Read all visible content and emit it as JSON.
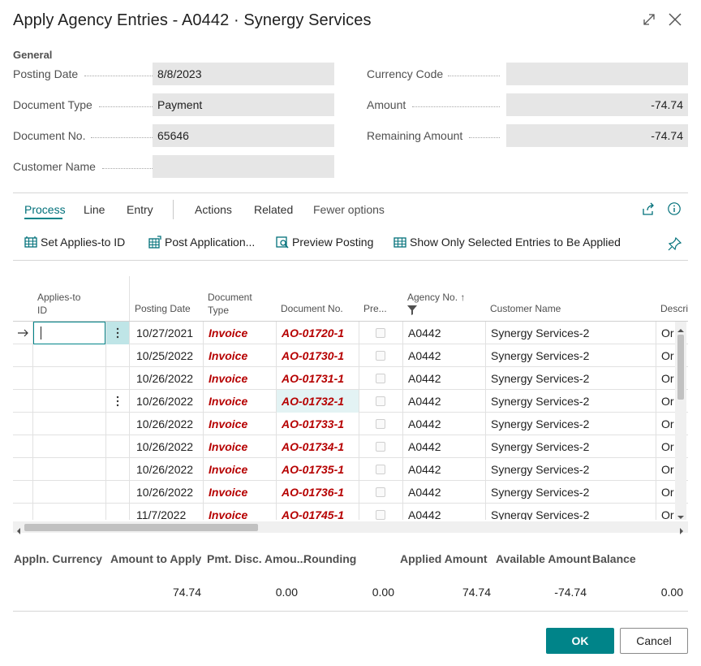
{
  "window": {
    "title": "Apply Agency Entries - A0442 · Synergy Services",
    "general_label": "General"
  },
  "general": {
    "posting_date_label": "Posting Date",
    "posting_date_value": "8/8/2023",
    "document_type_label": "Document Type",
    "document_type_value": "Payment",
    "document_no_label": "Document No.",
    "document_no_value": "65646",
    "customer_name_label": "Customer Name",
    "customer_name_value": "",
    "currency_code_label": "Currency Code",
    "currency_code_value": "",
    "amount_label": "Amount",
    "amount_value": "-74.74",
    "remaining_amount_label": "Remaining Amount",
    "remaining_amount_value": "-74.74"
  },
  "menu": {
    "process": "Process",
    "line": "Line",
    "entry": "Entry",
    "actions": "Actions",
    "related": "Related",
    "fewer_options": "Fewer options"
  },
  "actions": {
    "set_applies_to_id": "Set Applies-to ID",
    "post_application": "Post Application...",
    "preview_posting": "Preview Posting",
    "show_only_selected": "Show Only Selected Entries to Be Applied"
  },
  "table": {
    "headers": {
      "applies_to_id_1": "Applies-to",
      "applies_to_id_2": "ID",
      "posting_date": "Posting Date",
      "document_type_1": "Document",
      "document_type_2": "Type",
      "document_no": "Document No.",
      "pre": "Pre...",
      "agency_no": "Agency No. ↑",
      "customer_name": "Customer Name",
      "description": "Descri"
    },
    "rows": [
      {
        "posting_date": "10/27/2021",
        "document_type": "Invoice",
        "document_no": "AO-01720-1",
        "agency_no": "A0442",
        "customer_name": "Synergy Services-2",
        "description": "Or"
      },
      {
        "posting_date": "10/25/2022",
        "document_type": "Invoice",
        "document_no": "AO-01730-1",
        "agency_no": "A0442",
        "customer_name": "Synergy Services-2",
        "description": "Or"
      },
      {
        "posting_date": "10/26/2022",
        "document_type": "Invoice",
        "document_no": "AO-01731-1",
        "agency_no": "A0442",
        "customer_name": "Synergy Services-2",
        "description": "Or"
      },
      {
        "posting_date": "10/26/2022",
        "document_type": "Invoice",
        "document_no": "AO-01732-1",
        "agency_no": "A0442",
        "customer_name": "Synergy Services-2",
        "description": "Or"
      },
      {
        "posting_date": "10/26/2022",
        "document_type": "Invoice",
        "document_no": "AO-01733-1",
        "agency_no": "A0442",
        "customer_name": "Synergy Services-2",
        "description": "Or"
      },
      {
        "posting_date": "10/26/2022",
        "document_type": "Invoice",
        "document_no": "AO-01734-1",
        "agency_no": "A0442",
        "customer_name": "Synergy Services-2",
        "description": "Or"
      },
      {
        "posting_date": "10/26/2022",
        "document_type": "Invoice",
        "document_no": "AO-01735-1",
        "agency_no": "A0442",
        "customer_name": "Synergy Services-2",
        "description": "Or"
      },
      {
        "posting_date": "10/26/2022",
        "document_type": "Invoice",
        "document_no": "AO-01736-1",
        "agency_no": "A0442",
        "customer_name": "Synergy Services-2",
        "description": "Or"
      },
      {
        "posting_date": "11/7/2022",
        "document_type": "Invoice",
        "document_no": "AO-01745-1",
        "agency_no": "A0442",
        "customer_name": "Synergy Services-2",
        "description": "Or"
      }
    ]
  },
  "footer": {
    "appln_currency_label": "Appln. Currency",
    "amount_to_apply_label": "Amount to Apply",
    "pmt_disc_label": "Pmt. Disc. Amou...",
    "rounding_label": "Rounding",
    "applied_amount_label": "Applied Amount",
    "available_amount_label": "Available Amount",
    "balance_label": "Balance",
    "amount_to_apply_value": "74.74",
    "pmt_disc_value": "0.00",
    "rounding_value": "0.00",
    "applied_amount_value": "74.74",
    "available_amount_value": "-74.74",
    "balance_value": "0.00"
  },
  "buttons": {
    "ok": "OK",
    "cancel": "Cancel"
  },
  "colors": {
    "accent": "#008489",
    "invoice_red": "#b60000"
  }
}
